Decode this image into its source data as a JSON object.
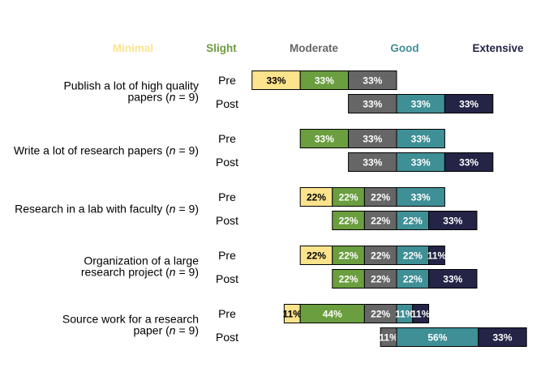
{
  "chart_data": {
    "type": "bar",
    "orientation": "horizontal",
    "stacked": true,
    "diverging": true,
    "title": "",
    "xlabel": "",
    "ylabel": "",
    "legend": {
      "placement": "top",
      "entries": [
        {
          "name": "Minimal",
          "color": "#FDE38C"
        },
        {
          "name": "Slight",
          "color": "#6B9E3F"
        },
        {
          "name": "Moderate",
          "color": "#666666"
        },
        {
          "name": "Good",
          "color": "#3F8F96"
        },
        {
          "name": "Extensive",
          "color": "#232446"
        }
      ]
    },
    "groups": [
      {
        "label": "Publish a lot of high quality papers (n = 9)",
        "label_lines": [
          "Publish a lot of high quality",
          "papers (",
          "n",
          " = 9)"
        ],
        "rows": [
          {
            "name": "Pre",
            "segments": [
              {
                "category": "Minimal",
                "value": 33,
                "label": "33%"
              },
              {
                "category": "Slight",
                "value": 33,
                "label": "33%"
              },
              {
                "category": "Moderate",
                "value": 33,
                "label": "33%"
              }
            ]
          },
          {
            "name": "Post",
            "segments": [
              {
                "category": "Moderate",
                "value": 33,
                "label": "33%"
              },
              {
                "category": "Good",
                "value": 33,
                "label": "33%"
              },
              {
                "category": "Extensive",
                "value": 33,
                "label": "33%"
              }
            ]
          }
        ]
      },
      {
        "label": "Write a lot of research papers (n = 9)",
        "label_lines": [
          "",
          "Write a lot of research papers (",
          "n",
          " = 9)"
        ],
        "rows": [
          {
            "name": "Pre",
            "segments": [
              {
                "category": "Slight",
                "value": 33,
                "label": "33%"
              },
              {
                "category": "Moderate",
                "value": 33,
                "label": "33%"
              },
              {
                "category": "Good",
                "value": 33,
                "label": "33%"
              }
            ]
          },
          {
            "name": "Post",
            "segments": [
              {
                "category": "Moderate",
                "value": 33,
                "label": "33%"
              },
              {
                "category": "Good",
                "value": 33,
                "label": "33%"
              },
              {
                "category": "Extensive",
                "value": 33,
                "label": "33%"
              }
            ]
          }
        ]
      },
      {
        "label": "Research in a lab with faculty (n = 9)",
        "label_lines": [
          "",
          "Research in a lab with faculty (",
          "n",
          " = 9)"
        ],
        "rows": [
          {
            "name": "Pre",
            "segments": [
              {
                "category": "Minimal",
                "value": 22,
                "label": "22%"
              },
              {
                "category": "Slight",
                "value": 22,
                "label": "22%"
              },
              {
                "category": "Moderate",
                "value": 22,
                "label": "22%"
              },
              {
                "category": "Good",
                "value": 33,
                "label": "33%"
              }
            ]
          },
          {
            "name": "Post",
            "segments": [
              {
                "category": "Slight",
                "value": 22,
                "label": "22%"
              },
              {
                "category": "Moderate",
                "value": 22,
                "label": "22%"
              },
              {
                "category": "Good",
                "value": 22,
                "label": "22%"
              },
              {
                "category": "Extensive",
                "value": 33,
                "label": "33%"
              }
            ]
          }
        ]
      },
      {
        "label": "Organization of a large research project (n = 9)",
        "label_lines": [
          "Organization of a large",
          "research project (",
          "n",
          " = 9)"
        ],
        "rows": [
          {
            "name": "Pre",
            "segments": [
              {
                "category": "Minimal",
                "value": 22,
                "label": "22%"
              },
              {
                "category": "Slight",
                "value": 22,
                "label": "22%"
              },
              {
                "category": "Moderate",
                "value": 22,
                "label": "22%"
              },
              {
                "category": "Good",
                "value": 22,
                "label": "22%"
              },
              {
                "category": "Extensive",
                "value": 11,
                "label": "11%"
              }
            ]
          },
          {
            "name": "Post",
            "segments": [
              {
                "category": "Slight",
                "value": 22,
                "label": "22%"
              },
              {
                "category": "Moderate",
                "value": 22,
                "label": "22%"
              },
              {
                "category": "Good",
                "value": 22,
                "label": "22%"
              },
              {
                "category": "Extensive",
                "value": 33,
                "label": "33%"
              }
            ]
          }
        ]
      },
      {
        "label": "Source work for a research paper (n = 9)",
        "label_lines": [
          "Source work for a research",
          "paper (",
          "n",
          " = 9)"
        ],
        "rows": [
          {
            "name": "Pre",
            "segments": [
              {
                "category": "Minimal",
                "value": 11,
                "label": "11%"
              },
              {
                "category": "Slight",
                "value": 44,
                "label": "44%"
              },
              {
                "category": "Moderate",
                "value": 22,
                "label": "22%"
              },
              {
                "category": "Good",
                "value": 11,
                "label": "11%"
              },
              {
                "category": "Extensive",
                "value": 11,
                "label": "11%"
              }
            ]
          },
          {
            "name": "Post",
            "segments": [
              {
                "category": "Moderate",
                "value": 11,
                "label": "11%"
              },
              {
                "category": "Good",
                "value": 56,
                "label": "56%"
              },
              {
                "category": "Extensive",
                "value": 33,
                "label": "33%"
              }
            ]
          }
        ]
      }
    ]
  }
}
